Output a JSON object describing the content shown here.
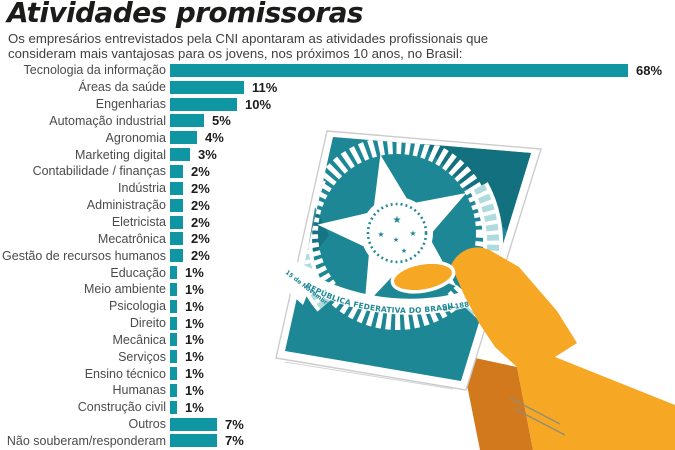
{
  "header": {
    "title": "Atividades promissoras",
    "subtitle": "Os empresários entrevistados pela CNI apontaram as atividades profissionais que consideram mais vantajosas para os jovens, nos próximos 10 anos, no Brasil:"
  },
  "chart_data": {
    "type": "bar",
    "orientation": "horizontal",
    "title": "Atividades promissoras",
    "categories": [
      "Tecnologia da informação",
      "Áreas da saúde",
      "Engenharias",
      "Automação industrial",
      "Agronomia",
      "Marketing digital",
      "Contabilidade / finanças",
      "Indústria",
      "Administração",
      "Eletricista",
      "Mecatrônica",
      "Gestão de recursos humanos",
      "Educação",
      "Meio ambiente",
      "Psicologia",
      "Direito",
      "Mecânica",
      "Serviços",
      "Ensino técnico",
      "Humanas",
      "Construção civil",
      "Outros",
      "Não souberam/responderam"
    ],
    "values": [
      68,
      11,
      10,
      5,
      4,
      3,
      2,
      2,
      2,
      2,
      2,
      2,
      1,
      1,
      1,
      1,
      1,
      1,
      1,
      1,
      1,
      7,
      7
    ],
    "unit": "%",
    "value_label_format": "{v}%",
    "xlim": [
      0,
      68
    ],
    "grid": false,
    "bar_color": "#1095a2",
    "legend": null
  },
  "illustration": {
    "name": "hand-holding-brazil-work-card",
    "ribbon_text": "REPÚBLICA FEDERATIVA DO BRASIL",
    "ribbon_left_text": "15 de Novembro",
    "ribbon_right_text": "de 1889",
    "colors": {
      "card": "#1e8795",
      "card_dark": "#13707e",
      "emblem_light": "#aedbde",
      "hand": "#f6a723",
      "hand_shadow": "#d2791e"
    }
  }
}
